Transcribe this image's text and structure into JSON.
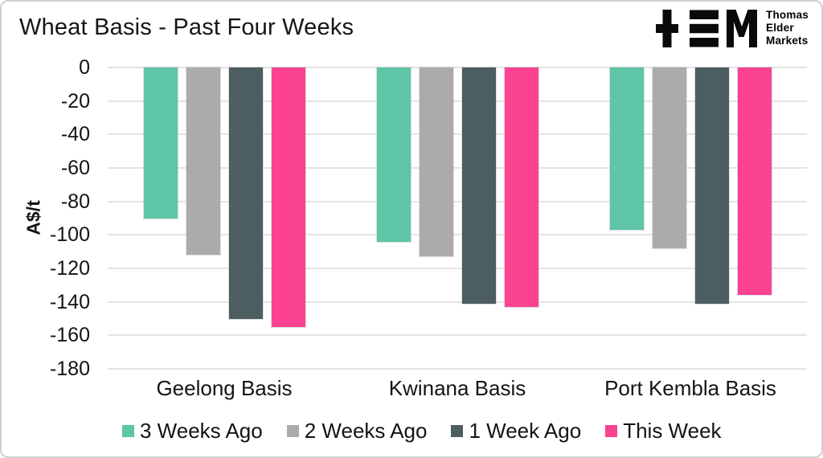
{
  "logo": {
    "line1": "Thomas",
    "line2": "Elder",
    "line3": "Markets"
  },
  "chart_data": {
    "type": "bar",
    "title": "Wheat Basis - Past Four Weeks",
    "xlabel": "",
    "ylabel": "A$/t",
    "categories": [
      "Geelong Basis",
      "Kwinana Basis",
      "Port Kembla Basis"
    ],
    "series": [
      {
        "name": "3 Weeks Ago",
        "color": "#5EC5A7",
        "values": [
          -90,
          -104,
          -97
        ]
      },
      {
        "name": "2 Weeks Ago",
        "color": "#ABABAB",
        "values": [
          -112,
          -113,
          -108
        ]
      },
      {
        "name": "1 Week Ago",
        "color": "#4C5E60",
        "values": [
          -150,
          -141,
          -141
        ]
      },
      {
        "name": "This Week",
        "color": "#FB4392",
        "values": [
          -155,
          -143,
          -136
        ]
      }
    ],
    "ylim": [
      -180,
      0
    ],
    "yticks": [
      0,
      -20,
      -40,
      -60,
      -80,
      -100,
      -120,
      -140,
      -160,
      -180
    ],
    "grid": true,
    "legend_position": "bottom"
  }
}
